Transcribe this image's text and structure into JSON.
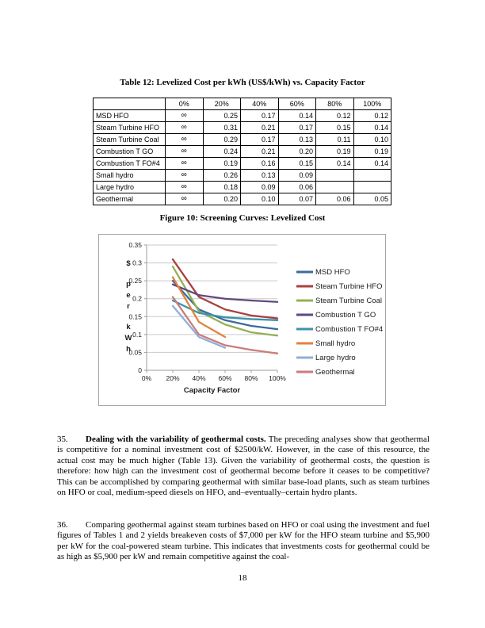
{
  "doc": {
    "table_title": "Table 12: Levelized Cost per kWh (US$/kWh) vs. Capacity Factor",
    "figure_title": "Figure 10: Screening Curves: Levelized Cost",
    "page_number": "18"
  },
  "cost_table": {
    "columns": [
      "",
      "0%",
      "20%",
      "40%",
      "60%",
      "80%",
      "100%"
    ],
    "rows": [
      {
        "label": "MSD HFO",
        "values": [
          "∞",
          "0.25",
          "0.17",
          "0.14",
          "0.12",
          "0.12"
        ]
      },
      {
        "label": "Steam Turbine HFO",
        "values": [
          "∞",
          "0.31",
          "0.21",
          "0.17",
          "0.15",
          "0.14"
        ]
      },
      {
        "label": "Steam Turbine Coal",
        "values": [
          "∞",
          "0.29",
          "0.17",
          "0.13",
          "0.11",
          "0.10"
        ]
      },
      {
        "label": "Combustion T GO",
        "values": [
          "∞",
          "0.24",
          "0.21",
          "0.20",
          "0.19",
          "0.19"
        ]
      },
      {
        "label": "Combustion T FO#4",
        "values": [
          "∞",
          "0.19",
          "0.16",
          "0.15",
          "0.14",
          "0.14"
        ]
      },
      {
        "label": "Small hydro",
        "values": [
          "∞",
          "0.26",
          "0.13",
          "0.09",
          "",
          ""
        ]
      },
      {
        "label": "Large hydro",
        "values": [
          "∞",
          "0.18",
          "0.09",
          "0.06",
          "",
          ""
        ]
      },
      {
        "label": "Geothermal",
        "values": [
          "∞",
          "0.20",
          "0.10",
          "0.07",
          "0.06",
          "0.05"
        ]
      }
    ]
  },
  "chart_data": {
    "type": "line",
    "title": "Figure 10: Screening Curves: Levelized Cost",
    "xlabel": "Capacity Factor",
    "ylabel": "$ per kWh",
    "x_tick_labels": [
      "0%",
      "20%",
      "40%",
      "60%",
      "80%",
      "100%"
    ],
    "x_percent": [
      20,
      40,
      60,
      80,
      100
    ],
    "ylim": [
      0,
      0.35
    ],
    "y_tick_step": 0.05,
    "y_tick_labels": [
      "0",
      "0.05",
      "0.1",
      "0.15",
      "0.2",
      "0.25",
      "0.3",
      "0.35"
    ],
    "grid": true,
    "legend_position": "right",
    "series": [
      {
        "name": "MSD HFO",
        "color": "#3C6A9D",
        "values": [
          0.25,
          0.17,
          0.14,
          0.124,
          0.115
        ]
      },
      {
        "name": "Steam Turbine HFO",
        "color": "#A8423F",
        "values": [
          0.31,
          0.205,
          0.17,
          0.153,
          0.145
        ]
      },
      {
        "name": "Steam Turbine Coal",
        "color": "#94B054",
        "values": [
          0.29,
          0.165,
          0.128,
          0.106,
          0.097
        ]
      },
      {
        "name": "Combustion T GO",
        "color": "#5F4A7C",
        "values": [
          0.24,
          0.21,
          0.2,
          0.195,
          0.191
        ]
      },
      {
        "name": "Combustion T FO#4",
        "color": "#3D92AC",
        "values": [
          0.195,
          0.16,
          0.148,
          0.143,
          0.14
        ]
      },
      {
        "name": "Small hydro",
        "color": "#E3823C",
        "values": [
          0.26,
          0.135,
          0.093,
          null,
          null
        ]
      },
      {
        "name": "Large hydro",
        "color": "#93AED5",
        "values": [
          0.18,
          0.093,
          0.063,
          null,
          null
        ]
      },
      {
        "name": "Geothermal",
        "color": "#C97D7B",
        "values": [
          0.205,
          0.1,
          0.07,
          0.057,
          0.047
        ]
      }
    ]
  },
  "paragraphs": [
    {
      "number": "35.",
      "lead": "Dealing with the variability of geothermal costs.",
      "body": " The preceding analyses show that geothermal is competitive for a nominal investment cost of $2500/kW. However, in the case of this resource, the actual cost may be much higher (Table 13). Given the variability of geothermal costs, the question is therefore: how high can the investment cost of geothermal become before it ceases to be competitive? This can be accomplished by comparing geothermal with similar base-load plants, such as steam turbines on HFO or coal, medium-speed diesels on HFO, and–eventually–certain hydro plants."
    },
    {
      "number": "36.",
      "lead": "",
      "body": "Comparing geothermal against steam turbines based on HFO or coal using the investment and fuel figures of Tables 1 and 2 yields breakeven costs of $7,000 per kW for the HFO steam turbine and $5,900 per kW for the coal-powered steam turbine. This indicates that investments costs for geothermal could be as high as $5,900 per kW and remain competitive against the coal-"
    }
  ]
}
